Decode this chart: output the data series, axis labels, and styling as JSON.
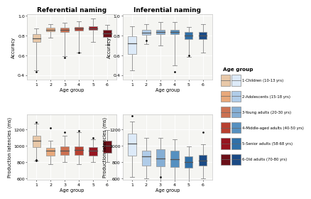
{
  "title_ref": "Referential naming",
  "title_inf": "Inferential naming",
  "xlabel": "Age group",
  "ylabel_acc": "Accuracy",
  "ylabel_rt": "Production latencies (ms)",
  "ref_colors": [
    "#e8c8a8",
    "#e8a87a",
    "#cc7050",
    "#b84030",
    "#961520",
    "#6b0f18"
  ],
  "inf_colors": [
    "#ddeaf8",
    "#b0cce8",
    "#85aed4",
    "#5590c0",
    "#3070a8",
    "#1a4a85"
  ],
  "legend_labels": [
    "1-Children (10-13 yrs)",
    "2-Adolescents (15-18 yrs)",
    "3-Young adults (20-30 yrs)",
    "4-Middle-aged adults (40-50 yrs)",
    "5-Senior adults (58-68 yrs)",
    "6-Old adults (70-80 yrs)"
  ],
  "ref_acc": {
    "medians": [
      0.775,
      0.862,
      0.858,
      0.87,
      0.872,
      0.82
    ],
    "q1": [
      0.735,
      0.845,
      0.84,
      0.852,
      0.858,
      0.785
    ],
    "q3": [
      0.815,
      0.882,
      0.878,
      0.888,
      0.892,
      0.86
    ],
    "whislo": [
      0.45,
      0.78,
      0.59,
      0.63,
      0.735,
      0.71
    ],
    "whishi": [
      0.87,
      0.918,
      0.928,
      0.948,
      0.978,
      0.908
    ],
    "fliers_lo": [
      [
        0.43
      ],
      [],
      [],
      [],
      [],
      []
    ],
    "fliers_hi": [
      [],
      [],
      [
        0.58
      ],
      [
        0.63
      ],
      [],
      []
    ]
  },
  "inf_acc": {
    "medians": [
      0.72,
      0.832,
      0.838,
      0.838,
      0.8,
      0.8
    ],
    "q1": [
      0.61,
      0.808,
      0.818,
      0.816,
      0.768,
      0.768
    ],
    "q3": [
      0.795,
      0.858,
      0.862,
      0.858,
      0.838,
      0.838
    ],
    "whislo": [
      0.45,
      0.718,
      0.698,
      0.498,
      0.588,
      0.628
    ],
    "whishi": [
      0.898,
      0.918,
      0.938,
      0.938,
      0.888,
      0.918
    ],
    "fliers_lo": [
      [],
      [],
      [],
      [
        0.43
      ],
      [],
      []
    ],
    "fliers_hi": [
      [],
      [
        0.75
      ],
      [],
      [],
      [
        0.598
      ],
      []
    ]
  },
  "ref_rt": {
    "medians": [
      1065,
      942,
      938,
      948,
      938,
      1002
    ],
    "q1": [
      988,
      878,
      888,
      888,
      878,
      918
    ],
    "q3": [
      1122,
      978,
      998,
      998,
      988,
      1068
    ],
    "whislo": [
      820,
      778,
      798,
      778,
      798,
      798
    ],
    "whishi": [
      1275,
      1068,
      1128,
      1168,
      1078,
      1198
    ],
    "fliers_lo": [
      [
        820,
        828
      ],
      [],
      [],
      [],
      [],
      []
    ],
    "fliers_hi": [
      [
        1290
      ],
      [
        1220
      ],
      [
        1168
      ],
      [
        1188
      ],
      [
        1095
      ],
      []
    ]
  },
  "inf_rt": {
    "medians": [
      1025,
      868,
      848,
      838,
      800,
      818
    ],
    "q1": [
      878,
      758,
      748,
      738,
      728,
      758
    ],
    "q3": [
      1148,
      938,
      958,
      938,
      868,
      888
    ],
    "whislo": [
      618,
      598,
      588,
      578,
      578,
      598
    ],
    "whishi": [
      1298,
      1098,
      1098,
      1078,
      998,
      1018
    ],
    "fliers_lo": [
      [],
      [],
      [
        618
      ],
      [],
      [],
      []
    ],
    "fliers_hi": [
      [
        1368
      ],
      [],
      [],
      [],
      [],
      [
        1168
      ]
    ]
  },
  "panel_bg": "#f5f5f2",
  "fig_bg": "#ffffff",
  "grid_color": "#ffffff",
  "box_edge_color": "#999999",
  "whisker_color": "#888888",
  "median_color": "#555555"
}
